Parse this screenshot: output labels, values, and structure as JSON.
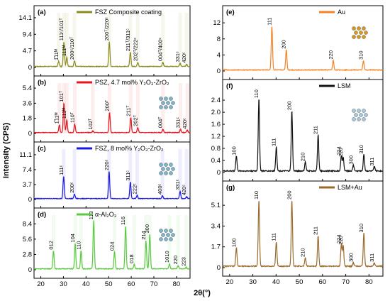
{
  "figure": {
    "ylabel": "Intensity (CPS)",
    "xlabel_left": "2θ(°)",
    "xticks_left": [
      20,
      30,
      40,
      50,
      60,
      70,
      80
    ],
    "xticks_right": [
      20,
      30,
      40,
      50,
      60,
      70,
      80
    ],
    "xlim": [
      17,
      86
    ]
  },
  "chart_data": [
    {
      "type": "line",
      "panel": "(a)",
      "legend": "FSZ Composite coating",
      "color": "#8b8b1e",
      "yticks": [
        "0",
        "4.7",
        "9.4",
        "14.1"
      ],
      "ylim": [
        0,
        15.5
      ],
      "x": [
        27.9,
        30.2,
        31.5,
        34.9,
        50.3,
        59.6,
        62.9,
        74.0,
        81.6,
        84.5
      ],
      "y": [
        1.4,
        7.0,
        2.6,
        1.6,
        7.0,
        4.0,
        1.2,
        1.2,
        0.9,
        0.7
      ],
      "peak_labels": [
        "1̅11ᴹ",
        "111ᶜ/101ᵀ",
        "111ᴹ",
        "200ᶜ/110ᵀ",
        "200ᵀ/220ᶜ",
        "211ᵀ/311ᶜ",
        "202ᵀ/222ᶜ",
        "004ᵀ/400ᶜ",
        "331ᶜ",
        "420ᶜ"
      ]
    },
    {
      "type": "line",
      "panel": "(b)",
      "legend": "PSZ, 4.7 mol% Y₂O₃-ZrO₂",
      "color": "#e8141e",
      "yticks": [
        "0",
        "1.8",
        "3.6",
        "5.4"
      ],
      "ylim": [
        0,
        6.0
      ],
      "x": [
        28.2,
        30.2,
        31.5,
        35.0,
        43.0,
        50.4,
        59.8,
        62.9,
        74.0,
        81.8,
        84.8
      ],
      "y": [
        0.9,
        3.5,
        1.5,
        1.0,
        0.2,
        2.4,
        1.8,
        0.6,
        0.4,
        0.4,
        0.3
      ],
      "peak_labels": [
        "1̅11ᴹ",
        "101ᵀ",
        "111ᴹ",
        "110ᵀ",
        "102ᵀ",
        "200ᵀ",
        "211ᵀ",
        "202ᵀ",
        "004ᵀ",
        "331ᶜ",
        "420ᶜ"
      ]
    },
    {
      "type": "line",
      "panel": "(c)",
      "legend": "FSZ, 8 mol% Y₂O₃-ZrO₂",
      "color": "#1a1ae0",
      "yticks": [
        "0",
        "3.7",
        "7.4",
        "11.1"
      ],
      "ylim": [
        0,
        12.5
      ],
      "x": [
        30.1,
        34.9,
        50.2,
        59.6,
        62.6,
        73.8,
        81.6,
        84.5
      ],
      "y": [
        5.5,
        1.1,
        6.7,
        4.1,
        0.8,
        0.7,
        1.8,
        0.5
      ],
      "peak_labels": [
        "111ᶜ",
        "200ᶜ",
        "220ᶜ",
        "311ᶜ",
        "222ᶜ",
        "400ᶜ",
        "331ᶜ",
        "420ᶜ"
      ]
    },
    {
      "type": "line",
      "panel": "(d)",
      "legend": "α-Al₂O₃",
      "color": "#5ec845",
      "yticks": [
        "0",
        "2.8",
        "5.6",
        "8.4"
      ],
      "ylim": [
        0,
        10.0
      ],
      "x": [
        25.6,
        35.2,
        37.8,
        43.4,
        52.6,
        57.5,
        61.3,
        66.5,
        68.2,
        76.9,
        80.7,
        84.3
      ],
      "y": [
        3.3,
        4.6,
        3.3,
        8.8,
        3.1,
        7.8,
        0.8,
        5.1,
        6.3,
        0.9,
        0.6,
        0.3
      ],
      "peak_labels": [
        "012",
        "104",
        "110",
        "113",
        "024",
        "116",
        "018",
        "214",
        "300",
        "1010",
        "220",
        "223"
      ]
    },
    {
      "type": "line",
      "panel": "(e)",
      "legend": "Au",
      "color": "#f5821e",
      "yticks": [
        "0",
        "4",
        "8",
        "12"
      ],
      "ylim": [
        0,
        14.5
      ],
      "x": [
        38.2,
        44.4,
        64.6,
        77.6
      ],
      "y": [
        10.8,
        5.0,
        2.4,
        2.3
      ],
      "peak_labels": [
        "111",
        "200",
        "220",
        "310"
      ]
    },
    {
      "type": "line",
      "panel": "(f)",
      "legend": "LSM",
      "color": "#111111",
      "yticks": [
        "0",
        "0.4",
        "0.8",
        "1.2",
        "1.6",
        "2.0",
        "2.4"
      ],
      "ylim": [
        0,
        2.85
      ],
      "x": [
        22.9,
        32.6,
        40.1,
        46.8,
        52.6,
        58.1,
        68.1,
        68.9,
        73.3,
        77.8,
        82.3
      ],
      "y": [
        0.5,
        2.4,
        0.8,
        2.0,
        0.3,
        1.2,
        0.5,
        0.45,
        0.2,
        0.55,
        0.15
      ],
      "peak_labels": [
        "100",
        "110",
        "111",
        "200",
        "210",
        "211",
        "224",
        "220",
        "300",
        "310",
        "311"
      ]
    },
    {
      "type": "line",
      "panel": "(g)",
      "legend": "LSM+Au",
      "color": "#9a6b2d",
      "yticks": [
        "0",
        "1.7",
        "3.4",
        "5.1"
      ],
      "ylim": [
        0,
        6.5
      ],
      "x": [
        22.9,
        32.6,
        40.1,
        46.8,
        52.6,
        58.1,
        68.1,
        68.9,
        73.3,
        77.8,
        82.3
      ],
      "y": [
        1.5,
        5.4,
        2.0,
        5.4,
        0.7,
        2.5,
        1.8,
        1.7,
        0.3,
        2.7,
        0.3
      ],
      "peak_labels": [
        "100",
        "110",
        "111",
        "200",
        "210",
        "211",
        "224",
        "220",
        "300",
        "310",
        "311"
      ]
    }
  ]
}
